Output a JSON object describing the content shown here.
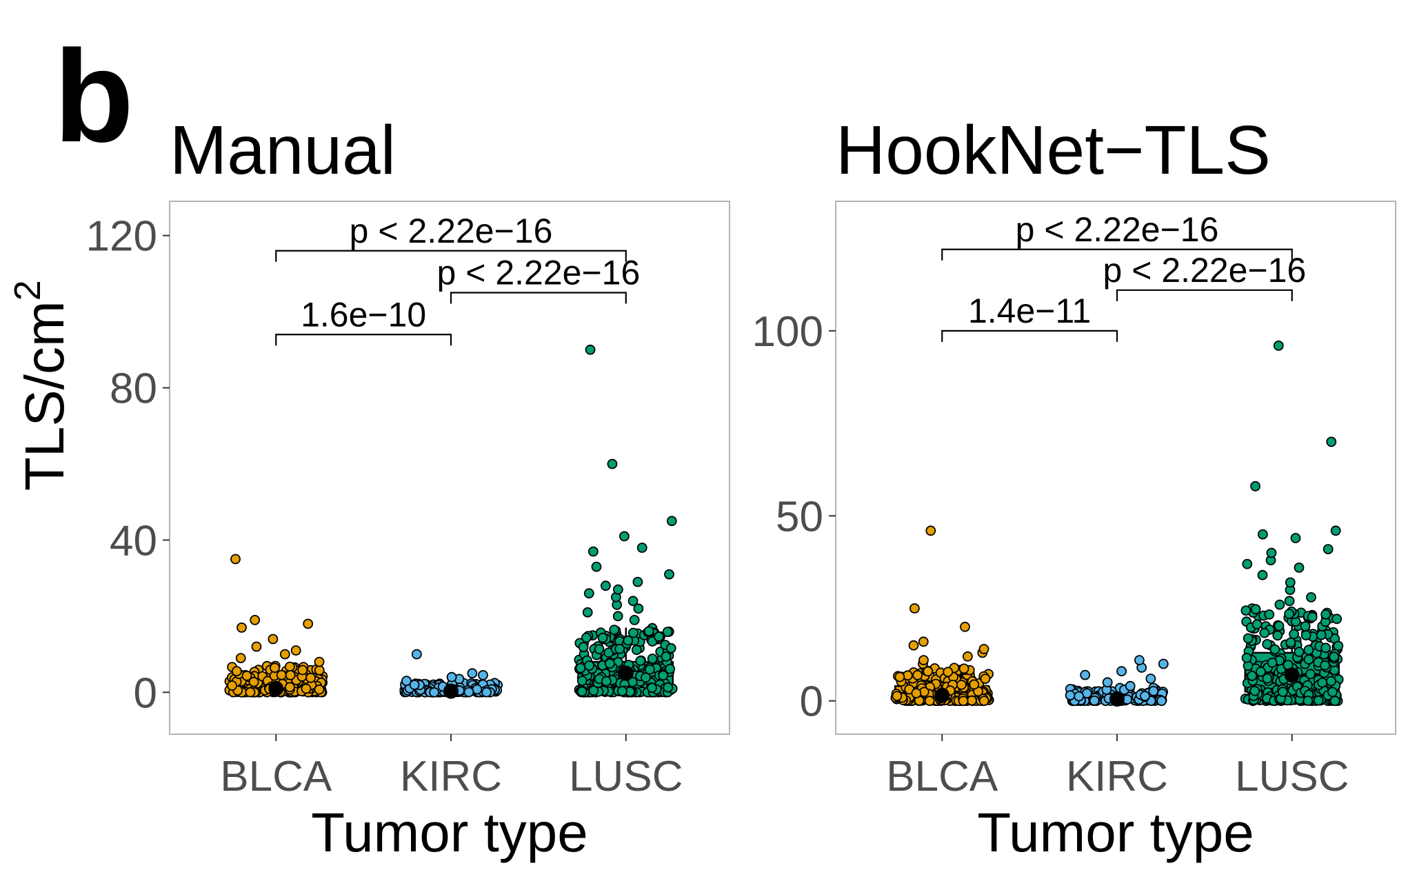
{
  "panel_letter": "b",
  "colors": {
    "BLCA": "#E69F00",
    "KIRC": "#56B4E9",
    "LUSC": "#009E73"
  },
  "chart_data": [
    {
      "type": "box-jitter",
      "title": "Manual",
      "xlabel": "Tumor type",
      "ylabel": "TLS/cm",
      "ylabel_superscript": "2",
      "categories": [
        "BLCA",
        "KIRC",
        "LUSC"
      ],
      "ylim": [
        -11,
        129
      ],
      "yticks": [
        0,
        40,
        80,
        120
      ],
      "yticklabels": [
        "0",
        "40",
        "80",
        "120"
      ],
      "boxes": [
        {
          "category": "BLCA",
          "q1": 0,
          "median": 1,
          "q3": 3,
          "whisker_low": 0,
          "whisker_high": 7,
          "mean": 1.0,
          "n": 230,
          "outliers": [
            8,
            9,
            10,
            11,
            12,
            14,
            17,
            18,
            19,
            35
          ]
        },
        {
          "category": "KIRC",
          "q1": 0,
          "median": 0.3,
          "q1_note": "",
          "q3": 1,
          "whisker_low": 0,
          "whisker_high": 2.5,
          "mean": 0.3,
          "n": 160,
          "outliers": [
            3,
            3.5,
            4,
            4.5,
            5,
            10
          ]
        },
        {
          "category": "LUSC",
          "q1": 2,
          "median": 5,
          "q3": 8,
          "whisker_low": 0,
          "whisker_high": 17,
          "mean": 5.0,
          "n": 300,
          "outliers": [
            19,
            20,
            21,
            22,
            23,
            24,
            25,
            26,
            27,
            28,
            29,
            31,
            33,
            37,
            38,
            41,
            45,
            60,
            90
          ]
        }
      ],
      "comparisons": [
        {
          "group1": "BLCA",
          "group2": "KIRC",
          "label": "1.6e−10",
          "y": 94
        },
        {
          "group1": "KIRC",
          "group2": "LUSC",
          "label": "p < 2.22e−16",
          "y": 105
        },
        {
          "group1": "BLCA",
          "group2": "LUSC",
          "label": "p < 2.22e−16",
          "y": 116
        }
      ]
    },
    {
      "type": "box-jitter",
      "title": "HookNet−TLS",
      "xlabel": "Tumor type",
      "ylabel": "",
      "categories": [
        "BLCA",
        "KIRC",
        "LUSC"
      ],
      "ylim": [
        -9,
        135
      ],
      "yticks": [
        0,
        50,
        100
      ],
      "yticklabels": [
        "0",
        "50",
        "100"
      ],
      "boxes": [
        {
          "category": "BLCA",
          "q1": 0.5,
          "median": 2,
          "q3": 4,
          "whisker_low": 0,
          "whisker_high": 9,
          "mean": 1.5,
          "n": 230,
          "outliers": [
            10,
            11,
            12,
            13,
            14,
            15,
            16,
            20,
            25,
            46
          ]
        },
        {
          "category": "KIRC",
          "q1": 0,
          "median": 0.7,
          "q3": 1.5,
          "whisker_low": 0,
          "whisker_high": 3.5,
          "mean": 0.5,
          "n": 160,
          "outliers": [
            4,
            5,
            6,
            7,
            8,
            9,
            10,
            11
          ]
        },
        {
          "category": "LUSC",
          "q1": 2.5,
          "median": 7,
          "q3": 13,
          "whisker_low": 0,
          "whisker_high": 25,
          "mean": 7.0,
          "n": 300,
          "outliers": [
            26,
            27,
            28,
            30,
            32,
            34,
            36,
            37,
            38,
            40,
            41,
            44,
            45,
            46,
            58,
            70,
            96
          ]
        }
      ],
      "comparisons": [
        {
          "group1": "BLCA",
          "group2": "KIRC",
          "label": "1.4e−11",
          "y": 100
        },
        {
          "group1": "KIRC",
          "group2": "LUSC",
          "label": "p < 2.22e−16",
          "y": 111
        },
        {
          "group1": "BLCA",
          "group2": "LUSC",
          "label": "p < 2.22e−16",
          "y": 122
        }
      ]
    }
  ]
}
